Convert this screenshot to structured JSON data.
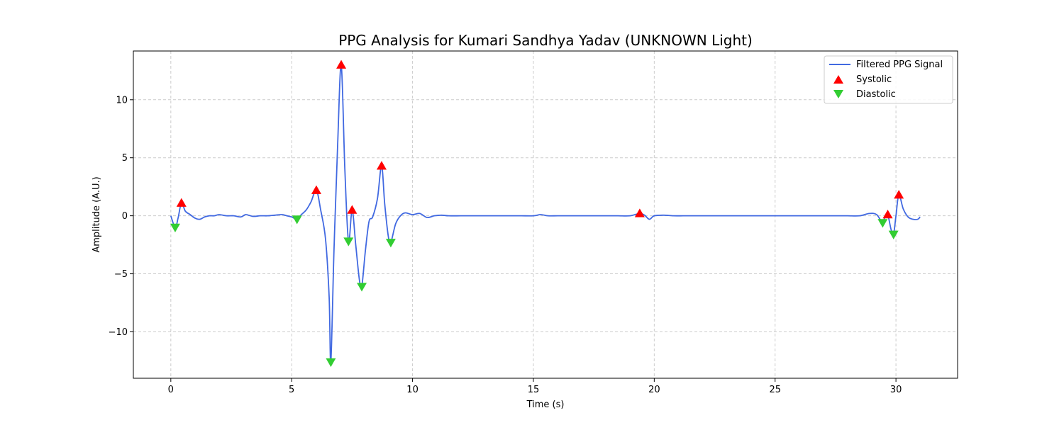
{
  "chart_data": {
    "type": "line",
    "title": "PPG Analysis for Kumari Sandhya Yadav (UNKNOWN Light)",
    "xlabel": "Time (s)",
    "ylabel": "Amplitude (A.U.)",
    "xlim": [
      -1.55,
      32.55
    ],
    "ylim": [
      -14.0,
      14.2
    ],
    "x_ticks": [
      0,
      5,
      10,
      15,
      20,
      25,
      30
    ],
    "x_tick_labels": [
      "0",
      "5",
      "10",
      "15",
      "20",
      "25",
      "30"
    ],
    "y_ticks": [
      -10,
      -5,
      0,
      5,
      10
    ],
    "y_tick_labels": [
      "−10",
      "−5",
      "0",
      "5",
      "10"
    ],
    "grid": true,
    "legend_position": "top-right",
    "colors": {
      "signal": "#4169e1",
      "systolic": "#ff0000",
      "diastolic": "#32cd32"
    },
    "series": [
      {
        "name": "Filtered PPG Signal",
        "style": "line",
        "x": [
          0,
          0.18,
          0.3,
          0.44,
          0.6,
          0.8,
          1.0,
          1.2,
          1.4,
          1.6,
          1.8,
          2.0,
          2.3,
          2.6,
          2.9,
          3.1,
          3.4,
          3.7,
          4.0,
          4.3,
          4.6,
          4.8,
          5.0,
          5.22,
          5.4,
          5.6,
          5.8,
          6.02,
          6.2,
          6.4,
          6.55,
          6.62,
          6.75,
          6.9,
          7.05,
          7.2,
          7.35,
          7.5,
          7.65,
          7.8,
          7.9,
          8.05,
          8.2,
          8.35,
          8.55,
          8.72,
          8.85,
          9.0,
          9.1,
          9.3,
          9.5,
          9.7,
          10.0,
          10.3,
          10.6,
          10.9,
          11.2,
          11.5,
          12,
          12.5,
          13,
          13.5,
          14,
          14.5,
          15,
          15.3,
          15.6,
          16,
          16.5,
          17,
          17.5,
          18,
          18.5,
          19,
          19.4,
          19.6,
          19.8,
          20,
          20.4,
          20.8,
          21.2,
          21.6,
          22,
          22.5,
          23,
          23.5,
          24,
          24.5,
          25,
          25.5,
          26,
          26.5,
          27,
          27.5,
          28,
          28.5,
          28.9,
          29.2,
          29.45,
          29.55,
          29.66,
          29.8,
          29.9,
          30.0,
          30.12,
          30.3,
          30.5,
          30.7,
          30.9,
          31.0
        ],
        "y": [
          0.0,
          -1.0,
          -0.2,
          1.1,
          0.4,
          0.1,
          -0.2,
          -0.3,
          -0.1,
          0.0,
          0.0,
          0.1,
          0.0,
          0.0,
          -0.1,
          0.1,
          -0.05,
          0.0,
          0.0,
          0.05,
          0.1,
          0.0,
          -0.1,
          -0.3,
          0.1,
          0.5,
          1.2,
          2.2,
          0.5,
          -2.0,
          -7.0,
          -12.6,
          -3.0,
          6.0,
          13.0,
          4.0,
          -2.2,
          0.5,
          -2.5,
          -5.5,
          -6.1,
          -3.0,
          -0.5,
          -0.1,
          1.5,
          4.3,
          1.0,
          -1.8,
          -2.3,
          -0.7,
          0.0,
          0.25,
          0.1,
          0.2,
          -0.15,
          0.0,
          0.05,
          0.0,
          0.0,
          0.0,
          0.0,
          0.0,
          0.0,
          0.0,
          0.0,
          0.1,
          0.0,
          0.0,
          0.0,
          0.0,
          0.0,
          0.0,
          0.0,
          0.0,
          0.2,
          0.05,
          -0.3,
          0.0,
          0.05,
          0.0,
          0.0,
          0.0,
          0.0,
          0.0,
          0.0,
          0.0,
          0.0,
          0.0,
          0.0,
          0.0,
          0.0,
          0.0,
          0.0,
          0.0,
          0.0,
          0.0,
          0.2,
          0.1,
          -0.6,
          0.0,
          0.1,
          -1.2,
          -1.6,
          0.0,
          1.8,
          0.6,
          -0.1,
          -0.3,
          -0.3,
          -0.1
        ]
      },
      {
        "name": "Systolic",
        "style": "marker-up",
        "x": [
          0.44,
          6.02,
          7.05,
          7.5,
          8.72,
          19.4,
          29.66,
          30.12
        ],
        "y": [
          1.1,
          2.2,
          13.0,
          0.5,
          4.3,
          0.2,
          0.1,
          1.8
        ]
      },
      {
        "name": "Diastolic",
        "style": "marker-down",
        "x": [
          0.18,
          5.22,
          6.62,
          7.35,
          7.9,
          9.1,
          29.45,
          29.9
        ],
        "y": [
          -1.0,
          -0.3,
          -12.6,
          -2.2,
          -6.1,
          -2.3,
          -0.6,
          -1.6
        ]
      }
    ]
  }
}
